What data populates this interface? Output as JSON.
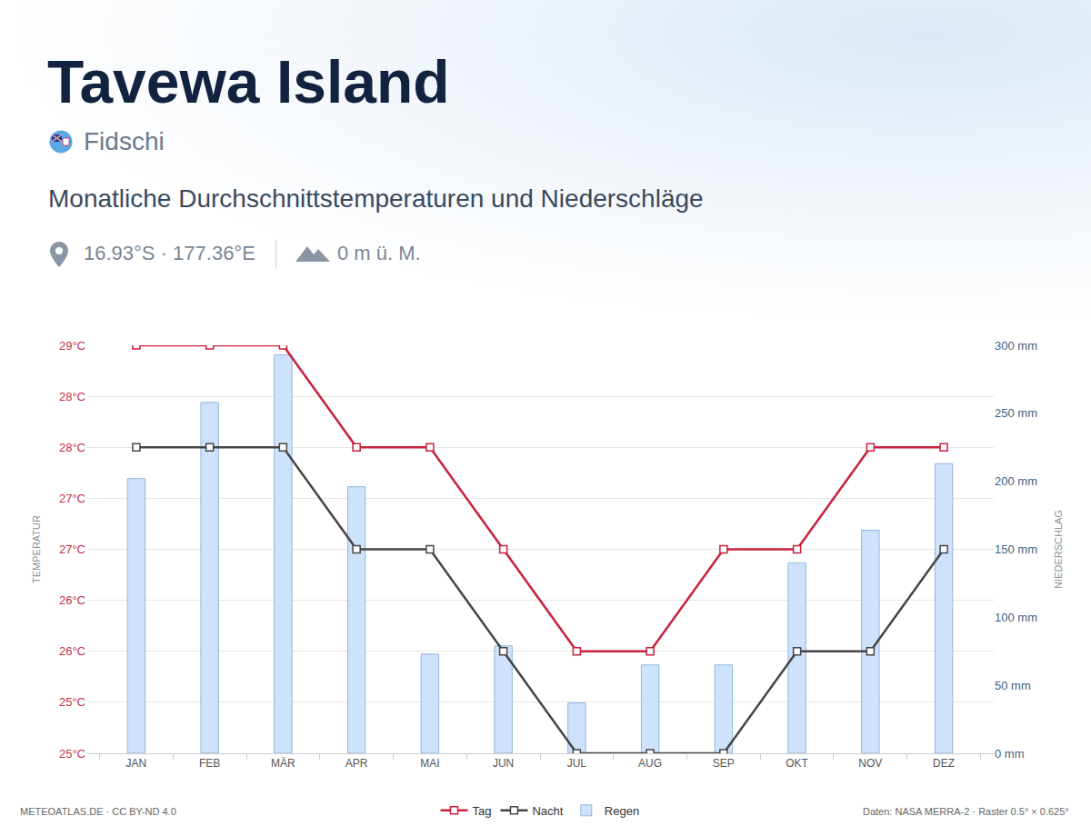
{
  "chart_data": {
    "type": "bar_line",
    "title": "Tavewa Island",
    "country": "Fidschi",
    "subtitle": "Monatliche Durchschnittstemperaturen und Niederschläge",
    "coordinates": "16.93°S · 177.36°E",
    "elevation": "0 m ü. M.",
    "credit": "METEOATLAS.DE · CC BY-ND 4.0",
    "source": "Daten: NASA MERRA-2 · Raster 0.5° × 0.625°",
    "y_label": "TEMPERATUR",
    "y2_label": "NIEDERSCHLAG",
    "categories": [
      "JAN",
      "FEB",
      "MÄR",
      "APR",
      "MAI",
      "JUN",
      "JUL",
      "AUG",
      "SEP",
      "OKT",
      "NOV",
      "DEZ"
    ],
    "series": [
      {
        "name": "Tag",
        "type": "line",
        "color": "#c8203c",
        "marker": "square",
        "axis": "y",
        "values": [
          29,
          29,
          29,
          28,
          28,
          27,
          26,
          26,
          27,
          27,
          28,
          28
        ]
      },
      {
        "name": "Nacht",
        "type": "line",
        "color": "#454545",
        "marker": "square",
        "axis": "y",
        "values": [
          28,
          28,
          28,
          27,
          27,
          26,
          25,
          25,
          25,
          26,
          26,
          27
        ]
      },
      {
        "name": "Regen",
        "type": "bar",
        "color": "#cfe2fb",
        "axis": "y2",
        "values": [
          202,
          258,
          293,
          196,
          73,
          79,
          37,
          65,
          65,
          140,
          164,
          213
        ]
      }
    ],
    "ylim": [
      25,
      29
    ],
    "yticks": [
      {
        "value": 25,
        "label": "25°C"
      },
      {
        "value": 25.5,
        "label": "25°C"
      },
      {
        "value": 26,
        "label": "26°C"
      },
      {
        "value": 26.5,
        "label": "26°C"
      },
      {
        "value": 27,
        "label": "27°C"
      },
      {
        "value": 27.5,
        "label": "27°C"
      },
      {
        "value": 28,
        "label": "28°C"
      },
      {
        "value": 28.5,
        "label": "28°C"
      },
      {
        "value": 29,
        "label": "29°C"
      }
    ],
    "y2lim": [
      0,
      300
    ],
    "y2ticks": [
      {
        "value": 0,
        "label": "0 mm"
      },
      {
        "value": 50,
        "label": "50 mm"
      },
      {
        "value": 100,
        "label": "100 mm"
      },
      {
        "value": 150,
        "label": "150 mm"
      },
      {
        "value": 200,
        "label": "200 mm"
      },
      {
        "value": 250,
        "label": "250 mm"
      },
      {
        "value": 300,
        "label": "300 mm"
      }
    ],
    "grid": true,
    "legend": "bottom"
  }
}
